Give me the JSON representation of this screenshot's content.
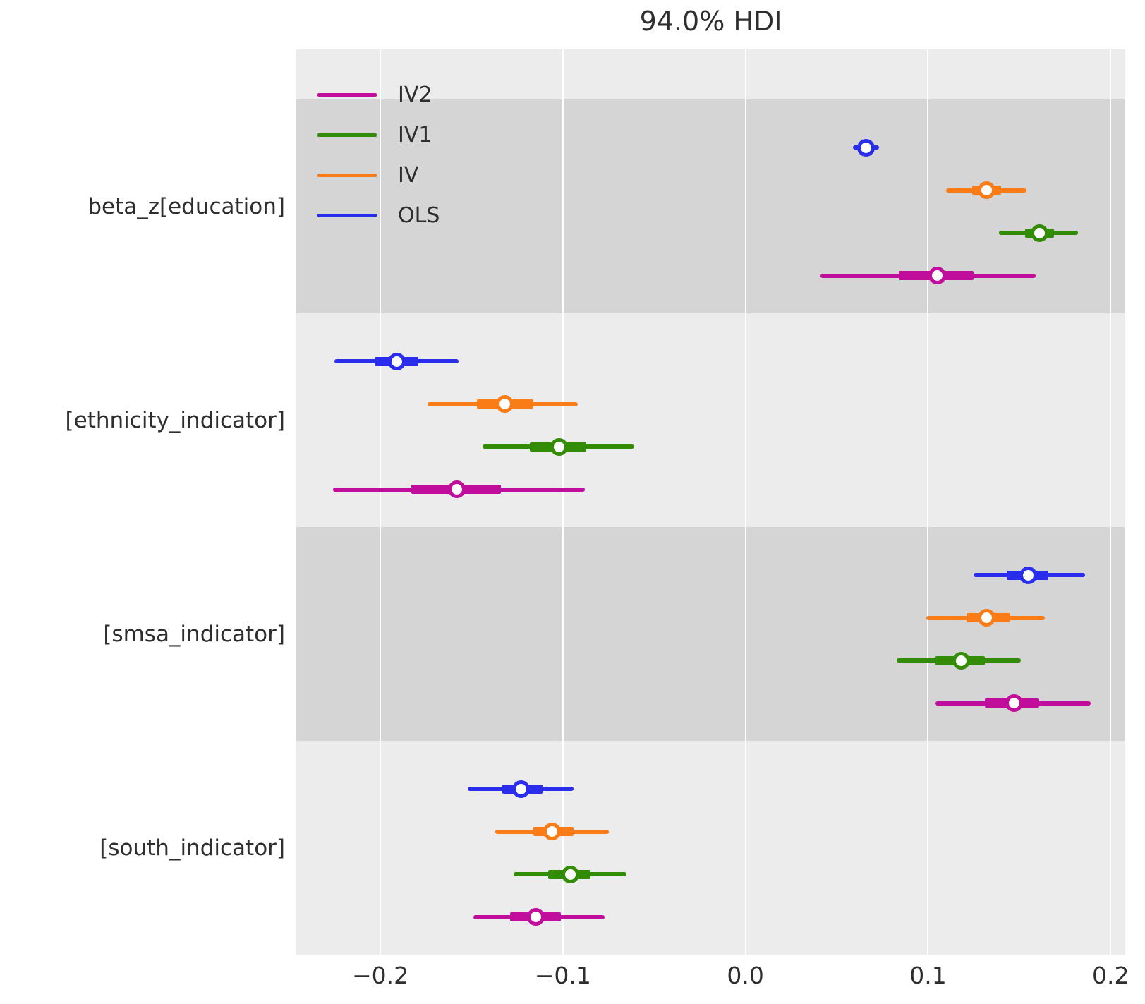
{
  "title": "94.0% HDI",
  "legend": {
    "position": "upper-left",
    "items": [
      {
        "label": "IV2",
        "color": "#c00d9c"
      },
      {
        "label": "IV1",
        "color": "#328c06"
      },
      {
        "label": "IV",
        "color": "#fa7c17"
      },
      {
        "label": "OLS",
        "color": "#2a2eec"
      }
    ]
  },
  "colors": {
    "OLS": "#2a2eec",
    "IV": "#fa7c17",
    "IV1": "#328c06",
    "IV2": "#c00d9c",
    "band_light": "#ececec",
    "band_dark": "#d5d5d5",
    "gridline": "#ffffff",
    "median_dot_fill": "#fdfdfd",
    "text": "#2e2e2e"
  },
  "chart_data": {
    "type": "forest-plot (dot + interval, 94% HDI)",
    "title": "94.0% HDI",
    "xlabel": "",
    "ylabel": "",
    "xlim": [
      -0.246,
      0.208
    ],
    "x_ticks": [
      -0.2,
      -0.1,
      0.0,
      0.1,
      0.2
    ],
    "x_tick_labels": [
      "−0.2",
      "−0.1",
      "0.0",
      "0.1",
      "0.2"
    ],
    "grid": "vertical white gridlines on alternating gray bands",
    "legend_position": "upper left",
    "row_order_top_to_bottom": [
      "OLS",
      "IV",
      "IV1",
      "IV2"
    ],
    "groups": [
      {
        "label": "beta_z[education]",
        "rows": [
          {
            "model": "OLS",
            "median": 0.066,
            "hdi_94": [
              0.059,
              0.073
            ],
            "quartile": [
              0.062,
              0.07
            ]
          },
          {
            "model": "IV",
            "median": 0.132,
            "hdi_94": [
              0.11,
              0.154
            ],
            "quartile": [
              0.124,
              0.14
            ]
          },
          {
            "model": "IV1",
            "median": 0.161,
            "hdi_94": [
              0.139,
              0.182
            ],
            "quartile": [
              0.153,
              0.169
            ]
          },
          {
            "model": "IV2",
            "median": 0.105,
            "hdi_94": [
              0.041,
              0.159
            ],
            "quartile": [
              0.084,
              0.125
            ]
          }
        ]
      },
      {
        "label": "[ethnicity_indicator]",
        "rows": [
          {
            "model": "OLS",
            "median": -0.191,
            "hdi_94": [
              -0.225,
              -0.157
            ],
            "quartile": [
              -0.203,
              -0.179
            ]
          },
          {
            "model": "IV",
            "median": -0.132,
            "hdi_94": [
              -0.174,
              -0.092
            ],
            "quartile": [
              -0.147,
              -0.116
            ]
          },
          {
            "model": "IV1",
            "median": -0.102,
            "hdi_94": [
              -0.144,
              -0.061
            ],
            "quartile": [
              -0.118,
              -0.087
            ]
          },
          {
            "model": "IV2",
            "median": -0.158,
            "hdi_94": [
              -0.226,
              -0.088
            ],
            "quartile": [
              -0.183,
              -0.134
            ]
          }
        ]
      },
      {
        "label": "[smsa_indicator]",
        "rows": [
          {
            "model": "OLS",
            "median": 0.155,
            "hdi_94": [
              0.125,
              0.186
            ],
            "quartile": [
              0.143,
              0.166
            ]
          },
          {
            "model": "IV",
            "median": 0.132,
            "hdi_94": [
              0.099,
              0.164
            ],
            "quartile": [
              0.121,
              0.145
            ]
          },
          {
            "model": "IV1",
            "median": 0.118,
            "hdi_94": [
              0.083,
              0.151
            ],
            "quartile": [
              0.104,
              0.131
            ]
          },
          {
            "model": "IV2",
            "median": 0.147,
            "hdi_94": [
              0.104,
              0.189
            ],
            "quartile": [
              0.131,
              0.161
            ]
          }
        ]
      },
      {
        "label": "[south_indicator]",
        "rows": [
          {
            "model": "OLS",
            "median": -0.123,
            "hdi_94": [
              -0.152,
              -0.094
            ],
            "quartile": [
              -0.133,
              -0.111
            ]
          },
          {
            "model": "IV",
            "median": -0.106,
            "hdi_94": [
              -0.137,
              -0.075
            ],
            "quartile": [
              -0.116,
              -0.094
            ]
          },
          {
            "model": "IV1",
            "median": -0.096,
            "hdi_94": [
              -0.127,
              -0.065
            ],
            "quartile": [
              -0.108,
              -0.085
            ]
          },
          {
            "model": "IV2",
            "median": -0.115,
            "hdi_94": [
              -0.149,
              -0.077
            ],
            "quartile": [
              -0.129,
              -0.101
            ]
          }
        ]
      }
    ]
  }
}
